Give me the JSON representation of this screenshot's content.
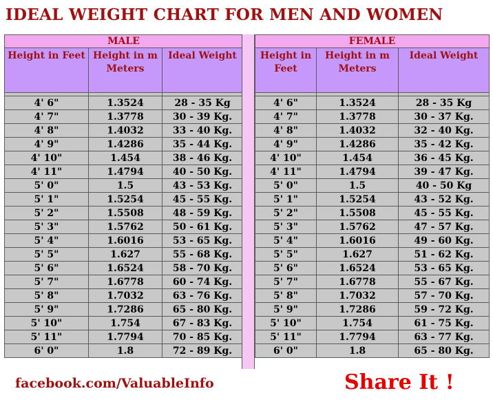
{
  "title": "IDEAL WEIGHT CHART FOR MEN AND WOMEN",
  "male": {
    "label": "MALE",
    "headers": [
      "Height in Feet",
      "Height in m Meters",
      "Ideal Weight"
    ],
    "rows": [
      [
        "4' 6\"",
        "1.3524",
        "28 - 35 Kg"
      ],
      [
        "4' 7\"",
        "1.3778",
        "30 - 39 Kg."
      ],
      [
        "4' 8\"",
        "1.4032",
        "33 - 40 Kg."
      ],
      [
        "4' 9\"",
        "1.4286",
        "35 - 44 Kg."
      ],
      [
        "4' 10\"",
        "1.454",
        "38 - 46 Kg."
      ],
      [
        "4' 11\"",
        "1.4794",
        "40 - 50 Kg."
      ],
      [
        "5' 0\"",
        "1.5",
        "43 - 53 Kg."
      ],
      [
        "5' 1\"",
        "1.5254",
        "45 - 55 Kg."
      ],
      [
        "5' 2\"",
        "1.5508",
        "48 - 59 Kg."
      ],
      [
        "5' 3\"",
        "1.5762",
        "50 - 61 Kg."
      ],
      [
        "5' 4\"",
        "1.6016",
        "53 - 65 Kg."
      ],
      [
        "5' 5\"",
        "1.627",
        "55 - 68 Kg."
      ],
      [
        "5' 6\"",
        "1.6524",
        "58 - 70 Kg."
      ],
      [
        "5' 7\"",
        "1.6778",
        "60 - 74 Kg."
      ],
      [
        "5' 8\"",
        "1.7032",
        "63 - 76 Kg."
      ],
      [
        "5' 9\"",
        "1.7286",
        "65 - 80 Kg."
      ],
      [
        "5' 10\"",
        "1.754",
        "67 - 83 Kg."
      ],
      [
        "5' 11\"",
        "1.7794",
        "70 - 85 Kg."
      ],
      [
        "6' 0\"",
        "1.8",
        "72 - 89 Kg."
      ]
    ]
  },
  "female": {
    "label": "FEMALE",
    "headers": [
      "Height in Feet",
      "Height in m Meters",
      "Ideal Weight"
    ],
    "rows": [
      [
        "4' 6\"",
        "1.3524",
        "28 - 35 Kg"
      ],
      [
        "4' 7\"",
        "1.3778",
        "30 - 37 Kg."
      ],
      [
        "4' 8\"",
        "1.4032",
        "32 - 40 Kg."
      ],
      [
        "4' 9\"",
        "1.4286",
        "35 - 42 Kg."
      ],
      [
        "4' 10\"",
        "1.454",
        "36 - 45 Kg."
      ],
      [
        "4' 11\"",
        "1.4794",
        "39 - 47 Kg."
      ],
      [
        "5' 0\"",
        "1.5",
        "40 - 50 Kg"
      ],
      [
        "5' 1\"",
        "1.5254",
        "43 - 52 Kg."
      ],
      [
        "5' 2\"",
        "1.5508",
        "45 - 55 Kg."
      ],
      [
        "5' 3\"",
        "1.5762",
        "47 - 57 Kg."
      ],
      [
        "5' 4\"",
        "1.6016",
        "49 - 60 Kg."
      ],
      [
        "5' 5\"",
        "1.627",
        "51 - 62 Kg."
      ],
      [
        "5' 6\"",
        "1.6524",
        "53 - 65 Kg."
      ],
      [
        "5' 7\"",
        "1.6778",
        "55 - 67 Kg."
      ],
      [
        "5' 8\"",
        "1.7032",
        "57 - 70 Kg."
      ],
      [
        "5' 9\"",
        "1.7286",
        "59 - 72 Kg."
      ],
      [
        "5' 10\"",
        "1.754",
        "61 - 75 Kg."
      ],
      [
        "5' 11\"",
        "1.7794",
        "63 - 77 Kg."
      ],
      [
        "6' 0\"",
        "1.8",
        "65 - 80 Kg."
      ]
    ]
  },
  "footer": {
    "facebook": "facebook.com/ValuableInfo",
    "share": "Share It !"
  },
  "colors": {
    "title": "#a01010",
    "section_header": "#f4a8f0",
    "column_header": "#c798fb",
    "cell": "#c8c8c8",
    "share": "#e60000"
  }
}
